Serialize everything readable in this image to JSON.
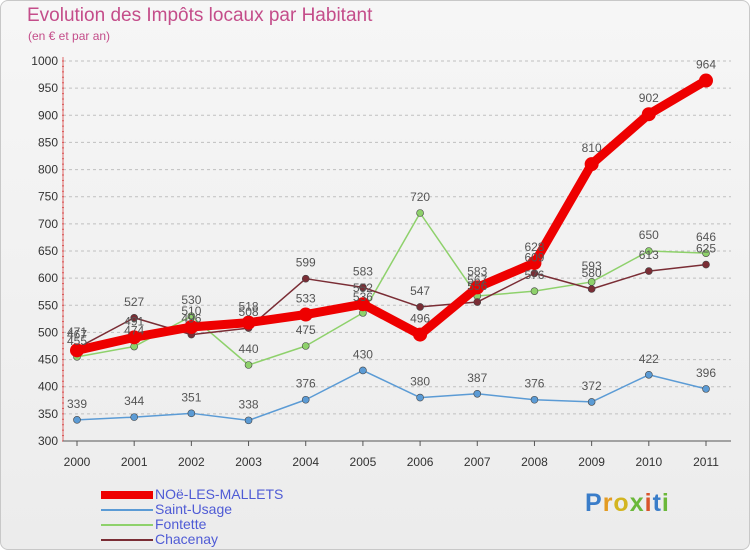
{
  "title": "Evolution des Impôts locaux par Habitant",
  "subtitle": "(en € et par an)",
  "logo_letters": [
    "P",
    "r",
    "o",
    "x",
    "i",
    "t",
    "i"
  ],
  "colors": {
    "title": "#c44d8a",
    "legend_text": "#4f5bd5",
    "grid": "#c0c0c0"
  },
  "chart_data": {
    "type": "line",
    "title": "Evolution des Impôts locaux par Habitant",
    "subtitle": "(en € et par an)",
    "xlabel": "",
    "ylabel": "",
    "x": [
      "2000",
      "2001",
      "2002",
      "2003",
      "2004",
      "2005",
      "2006",
      "2007",
      "2008",
      "2009",
      "2010",
      "2011"
    ],
    "ylim": [
      300,
      1000
    ],
    "yticks": [
      300,
      350,
      400,
      450,
      500,
      550,
      600,
      650,
      700,
      750,
      800,
      850,
      900,
      950,
      1000
    ],
    "grid": "horizontal dashed",
    "legend_position": "bottom-left",
    "series": [
      {
        "name": "NOë-LES-MALLETS",
        "color": "#ee0000",
        "label_color": "#555555",
        "values": [
          467,
          491,
          510,
          518,
          533,
          552,
          496,
          583,
          628,
          810,
          902,
          964
        ],
        "labels": [
          "467",
          "491",
          "510",
          "518",
          "533",
          "552",
          "496",
          "583",
          "628",
          "810",
          "902",
          "964"
        ]
      },
      {
        "name": "Saint-Usage",
        "color": "#5b9bd5",
        "label_color": "#555555",
        "values": [
          339,
          344,
          351,
          338,
          376,
          430,
          380,
          387,
          376,
          372,
          422,
          396
        ],
        "labels": [
          "339",
          "344",
          "351",
          "338",
          "376",
          "430",
          "380",
          "387",
          "376",
          "372",
          "422",
          "396"
        ]
      },
      {
        "name": "Fontette",
        "color": "#8ed16b",
        "label_color": "#555555",
        "values": [
          455,
          474,
          530,
          440,
          475,
          536,
          720,
          567,
          576,
          593,
          650,
          646
        ],
        "labels": [
          "455",
          "474",
          "530",
          "440",
          "475",
          "536",
          "720",
          "567",
          "576",
          "593",
          "650",
          "646"
        ]
      },
      {
        "name": "Chacenay",
        "color": "#7a2d35",
        "label_color": "#555555",
        "values": [
          471,
          527,
          496,
          508,
          599,
          583,
          547,
          556,
          609,
          580,
          613,
          625
        ],
        "labels": [
          "471",
          "527",
          "496",
          "508",
          "599",
          "583",
          "547",
          "556",
          "609",
          "580",
          "613",
          "625"
        ]
      }
    ]
  }
}
